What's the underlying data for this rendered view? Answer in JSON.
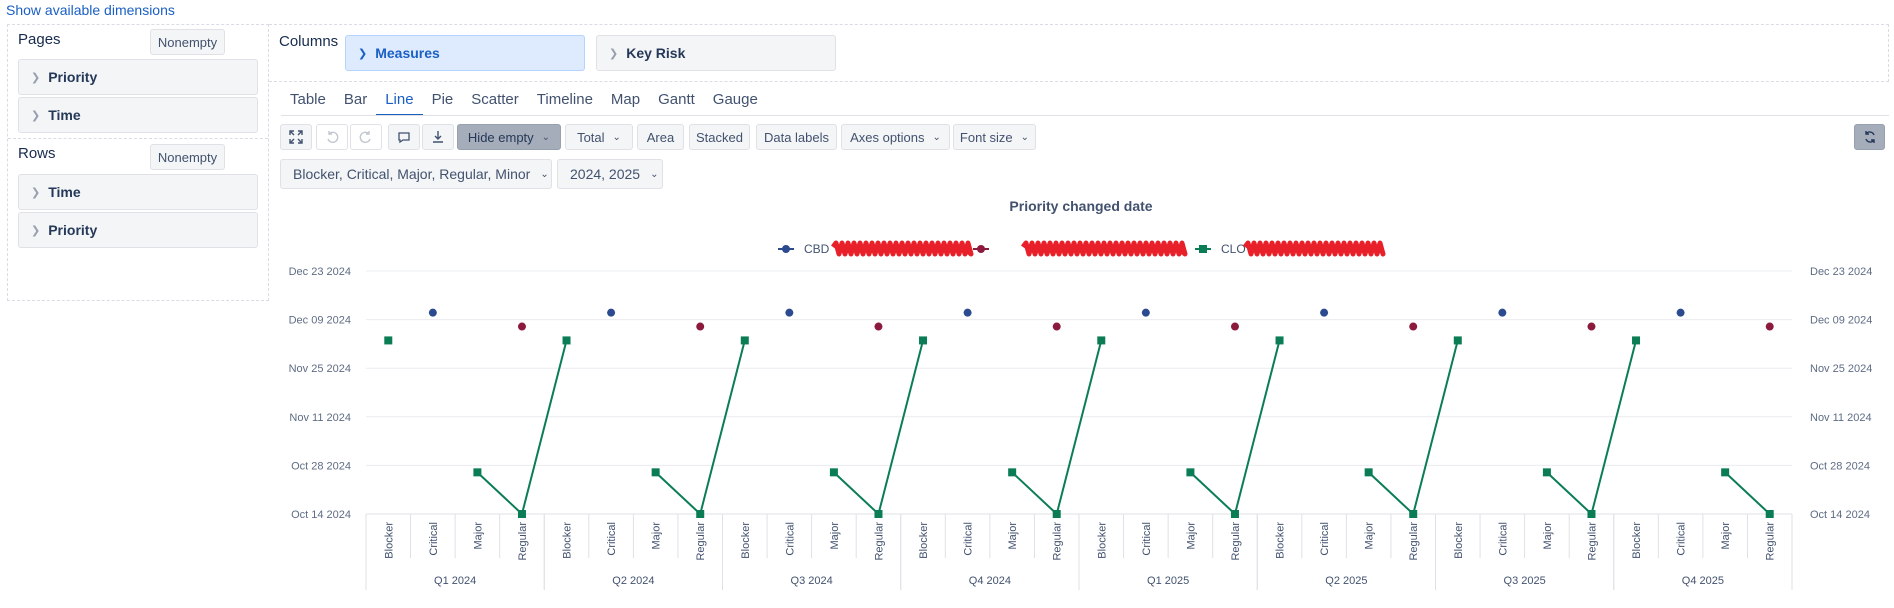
{
  "topbar": {
    "show_dimensions": "Show available dimensions"
  },
  "left_panel": {
    "pages_label": "Pages",
    "rows_label": "Rows",
    "nonempty_label": "Nonempty",
    "pages_items": [
      "Priority",
      "Time"
    ],
    "rows_items": [
      "Time",
      "Priority"
    ]
  },
  "columns": {
    "label": "Columns",
    "chips": [
      "Measures",
      "Key Risk"
    ]
  },
  "tabs": [
    "Table",
    "Bar",
    "Line",
    "Pie",
    "Scatter",
    "Timeline",
    "Map",
    "Gantt",
    "Gauge"
  ],
  "active_tab": "Line",
  "toolbar": {
    "hide_empty": "Hide empty",
    "total": "Total",
    "area": "Area",
    "stacked": "Stacked",
    "data_labels": "Data labels",
    "axes_options": "Axes options",
    "font_size": "Font size",
    "icons": [
      "expand-icon",
      "undo-icon",
      "redo-icon",
      "comment-icon",
      "download-icon",
      "refresh-icon"
    ]
  },
  "filters": {
    "priority": "Blocker, Critical, Major, Regular, Minor",
    "time": "2024, 2025"
  },
  "colors": {
    "series_blue": "#2c4a8f",
    "series_red": "#8c1a3c",
    "series_green": "#0b7d55",
    "accent": "#1a5fc4",
    "redaction": "#e8202a"
  },
  "chart_data": {
    "type": "line",
    "title": "Priority changed date",
    "y_ticks": [
      "Oct 14 2024",
      "Oct 28 2024",
      "Nov 11 2024",
      "Nov 25 2024",
      "Dec 09 2024",
      "Dec 23 2024"
    ],
    "ylim": [
      "Oct 14 2024",
      "Dec 23 2024"
    ],
    "y_axis_right": true,
    "legend_position": "top-center",
    "groups": [
      "Q1 2024",
      "Q2 2024",
      "Q3 2024",
      "Q4 2024",
      "Q1 2025",
      "Q2 2025",
      "Q3 2025",
      "Q4 2025"
    ],
    "categories": [
      "Blocker",
      "Critical",
      "Major",
      "Regular"
    ],
    "series": [
      {
        "name": "CBD",
        "marker": "circle",
        "values": [
          [
            null,
            "Dec 11 2024",
            null,
            null
          ],
          [
            null,
            "Dec 11 2024",
            null,
            null
          ],
          [
            null,
            "Dec 11 2024",
            null,
            null
          ],
          [
            null,
            "Dec 11 2024",
            null,
            null
          ],
          [
            null,
            "Dec 11 2024",
            null,
            null
          ],
          [
            null,
            "Dec 11 2024",
            null,
            null
          ],
          [
            null,
            "Dec 11 2024",
            null,
            null
          ],
          [
            null,
            "Dec 11 2024",
            null,
            null
          ]
        ]
      },
      {
        "marker": "circle",
        "values": [
          [
            null,
            null,
            null,
            "Dec 07 2024"
          ],
          [
            null,
            null,
            null,
            "Dec 07 2024"
          ],
          [
            null,
            null,
            null,
            "Dec 07 2024"
          ],
          [
            null,
            null,
            null,
            "Dec 07 2024"
          ],
          [
            null,
            null,
            null,
            "Dec 07 2024"
          ],
          [
            null,
            null,
            null,
            "Dec 07 2024"
          ],
          [
            null,
            null,
            null,
            "Dec 07 2024"
          ],
          [
            null,
            null,
            null,
            "Dec 07 2024"
          ]
        ]
      },
      {
        "name": "CLO",
        "marker": "square",
        "values": [
          [
            "Dec 03 2024",
            null,
            "Oct 26 2024",
            "Oct 14 2024"
          ],
          [
            "Dec 03 2024",
            null,
            "Oct 26 2024",
            "Oct 14 2024"
          ],
          [
            "Dec 03 2024",
            null,
            "Oct 26 2024",
            "Oct 14 2024"
          ],
          [
            "Dec 03 2024",
            null,
            "Oct 26 2024",
            "Oct 14 2024"
          ],
          [
            "Dec 03 2024",
            null,
            "Oct 26 2024",
            "Oct 14 2024"
          ],
          [
            "Dec 03 2024",
            null,
            "Oct 26 2024",
            "Oct 14 2024"
          ],
          [
            "Dec 03 2024",
            null,
            "Oct 26 2024",
            "Oct 14 2024"
          ],
          [
            "Dec 03 2024",
            null,
            "Oct 26 2024",
            "Oct 14 2024"
          ]
        ]
      }
    ]
  }
}
